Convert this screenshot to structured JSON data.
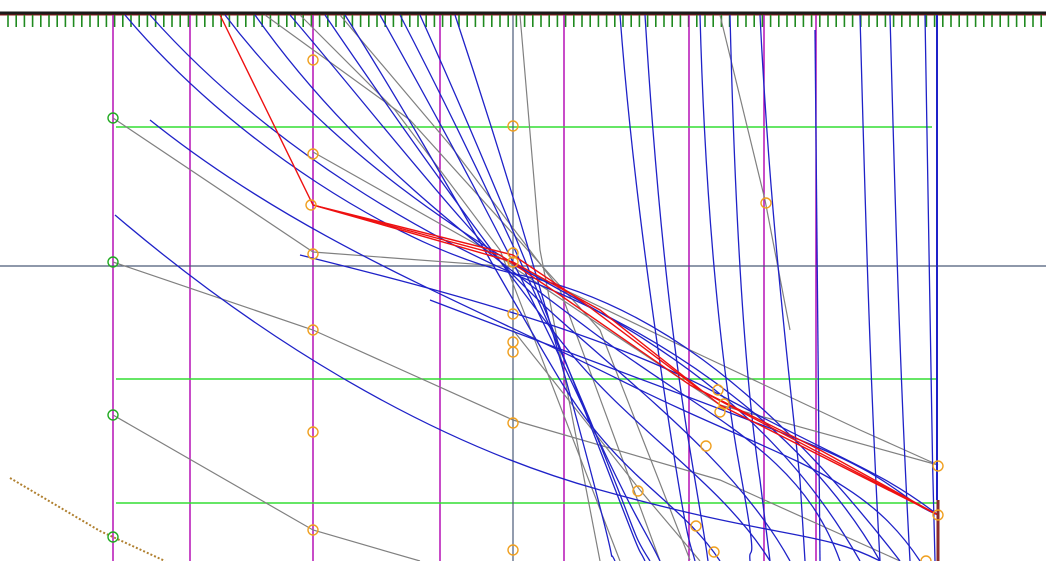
{
  "colors": {
    "background": "#ffffff",
    "top_rule": "#1a1a1a",
    "top_rule_edge": "#8b1a1a",
    "ticks": "#1f8a1f",
    "vertical_guides": "#b000b0",
    "horizontal_guides": "#33dd33",
    "midline": "#4a5a78",
    "blue_curves": "#1f22c8",
    "gray_lines": "#808080",
    "red_path": "#ee1111",
    "orange_nodes": "#f0a020",
    "green_nodes": "#22aa22",
    "right_post": "#8b2a2a"
  },
  "icons": {
    "orange_node": "circle-marker",
    "green_node": "circle-marker"
  }
}
